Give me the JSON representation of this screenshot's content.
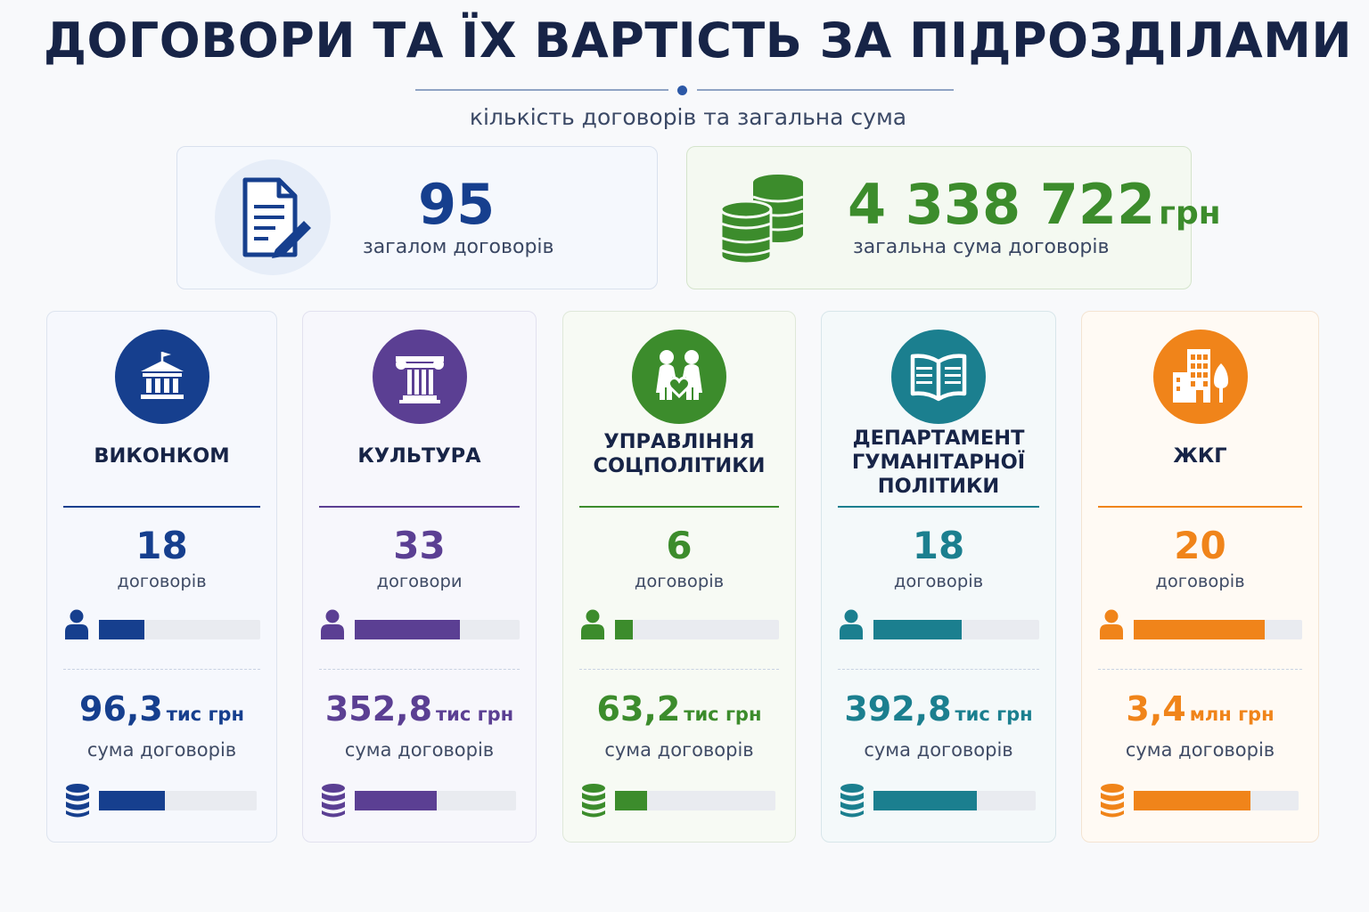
{
  "header": {
    "title": "ДОГОВОРИ ТА ЇХ ВАРТІСТЬ ЗА ПІДРОЗДІЛАМИ",
    "subtitle": "кількість договорів та загальна сума"
  },
  "summary": {
    "total_contracts": {
      "value": "95",
      "label": "загалом договорів",
      "icon": "document-pen-icon",
      "color": "#163f8e"
    },
    "total_amount": {
      "value": "4 338 722",
      "unit": "грн",
      "label": "загальна сума договорів",
      "icon": "coins-stack-icon",
      "color": "#3c8c2c"
    }
  },
  "departments": [
    {
      "name": "ВИКОНКОМ",
      "icon": "government-building-icon",
      "color": "#163f8e",
      "count": "18",
      "count_label": "договорів",
      "count_fraction": 0.28,
      "amount": "96,3",
      "amount_unit": "тис грн",
      "amount_label": "сума договорів",
      "amount_fraction": 0.42
    },
    {
      "name": "КУЛЬТУРА",
      "icon": "column-icon",
      "color": "#5b3f93",
      "count": "33",
      "count_label": "договори",
      "count_fraction": 0.64,
      "amount": "352,8",
      "amount_unit": "тис грн",
      "amount_label": "сума договорів",
      "amount_fraction": 0.51
    },
    {
      "name": "УПРАВЛІННЯ\nСОЦПОЛІТИКИ",
      "icon": "family-heart-icon",
      "color": "#3c8c2c",
      "count": "6",
      "count_label": "договорів",
      "count_fraction": 0.11,
      "amount": "63,2",
      "amount_unit": "тис грн",
      "amount_label": "сума договорів",
      "amount_fraction": 0.2
    },
    {
      "name": "ДЕПАРТАМЕНТ\nГУМАНІТАРНОЇ\nПОЛІТИКИ",
      "icon": "open-book-icon",
      "color": "#1b7f8f",
      "count": "18",
      "count_label": "договорів",
      "count_fraction": 0.53,
      "amount": "392,8",
      "amount_unit": "тис грн",
      "amount_label": "сума договорів",
      "amount_fraction": 0.64
    },
    {
      "name": "ЖКГ",
      "icon": "city-buildings-icon",
      "color": "#f0841a",
      "count": "20",
      "count_label": "договорів",
      "count_fraction": 0.78,
      "amount": "3,4",
      "amount_unit": "млн грн",
      "amount_label": "сума договорів",
      "amount_fraction": 0.71
    }
  ]
}
